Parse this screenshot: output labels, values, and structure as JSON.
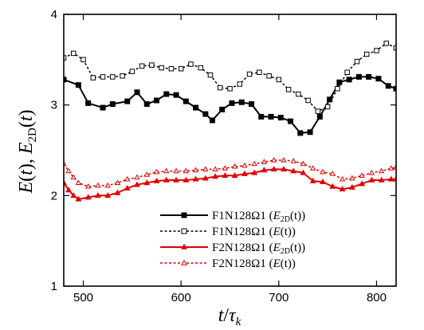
{
  "chart_data": {
    "type": "line",
    "title": "",
    "xlabel": "t/τ_k",
    "ylabel": "E(t), E_2D(t)",
    "xlim": [
      480,
      820
    ],
    "ylim": [
      1,
      4
    ],
    "xticks": [
      "500",
      "600",
      "700",
      "800"
    ],
    "yticks": [
      "1",
      "2",
      "3",
      "4"
    ],
    "grid": false,
    "legend_position": "bottom-right",
    "series": [
      {
        "name": "F1N128Ω1 (E_2D(t))",
        "legend_main": "F1N128Ω1 (",
        "legend_var": "E",
        "legend_sub": "2D",
        "legend_tail": "(t))",
        "color": "#000000",
        "dash": "solid",
        "marker": "filled-square",
        "x": [
          480,
          495,
          505,
          520,
          530,
          545,
          555,
          565,
          575,
          585,
          595,
          605,
          615,
          625,
          632,
          642,
          652,
          662,
          672,
          682,
          692,
          702,
          712,
          722,
          732,
          742,
          752,
          762,
          772,
          782,
          792,
          802,
          812,
          820
        ],
        "y": [
          3.28,
          3.22,
          3.02,
          2.97,
          3.01,
          3.04,
          3.14,
          3.01,
          3.05,
          3.12,
          3.11,
          3.04,
          2.97,
          2.9,
          2.83,
          2.95,
          3.02,
          3.03,
          3.01,
          2.87,
          2.87,
          2.86,
          2.82,
          2.69,
          2.7,
          2.87,
          3.06,
          3.25,
          3.28,
          3.31,
          3.31,
          3.29,
          3.21,
          3.18
        ]
      },
      {
        "name": "F1N128Ω1 (E(t))",
        "legend_main": "F1N128Ω1 (",
        "legend_var": "E",
        "legend_sub": "",
        "legend_tail": "(t))",
        "color": "#000000",
        "dash": "dashed",
        "marker": "open-square",
        "x": [
          480,
          490,
          500,
          510,
          520,
          530,
          540,
          550,
          560,
          570,
          580,
          590,
          600,
          610,
          620,
          630,
          640,
          650,
          660,
          670,
          680,
          690,
          700,
          710,
          720,
          730,
          740,
          750,
          760,
          770,
          780,
          790,
          800,
          810,
          820
        ],
        "y": [
          3.52,
          3.57,
          3.5,
          3.3,
          3.31,
          3.31,
          3.32,
          3.37,
          3.43,
          3.44,
          3.41,
          3.4,
          3.4,
          3.45,
          3.41,
          3.33,
          3.19,
          3.18,
          3.23,
          3.34,
          3.36,
          3.32,
          3.28,
          3.17,
          3.12,
          3.05,
          2.93,
          2.98,
          3.18,
          3.36,
          3.48,
          3.56,
          3.6,
          3.68,
          3.63
        ]
      },
      {
        "name": "F2N128Ω1 (E_2D(t))",
        "legend_main": "F2N128Ω1 (",
        "legend_var": "E",
        "legend_sub": "2D",
        "legend_tail": "(t))",
        "color": "#e00000",
        "dash": "solid",
        "marker": "filled-triangle",
        "x": [
          480,
          485,
          490,
          495,
          505,
          515,
          525,
          535,
          545,
          555,
          565,
          575,
          585,
          595,
          605,
          615,
          625,
          635,
          645,
          655,
          665,
          675,
          685,
          695,
          705,
          715,
          725,
          735,
          745,
          755,
          765,
          775,
          785,
          795,
          805,
          815,
          820
        ],
        "y": [
          2.14,
          2.06,
          2.0,
          1.96,
          1.98,
          2.0,
          2.0,
          2.03,
          2.08,
          2.12,
          2.14,
          2.16,
          2.17,
          2.17,
          2.17,
          2.18,
          2.19,
          2.21,
          2.22,
          2.22,
          2.24,
          2.25,
          2.28,
          2.29,
          2.29,
          2.27,
          2.25,
          2.16,
          2.15,
          2.1,
          2.07,
          2.09,
          2.13,
          2.17,
          2.17,
          2.18,
          2.18
        ]
      },
      {
        "name": "F2N128Ω1 (E(t))",
        "legend_main": "F2N128Ω1 (",
        "legend_var": "E",
        "legend_sub": "",
        "legend_tail": "(t))",
        "color": "#e00000",
        "dash": "dashed",
        "marker": "open-triangle",
        "x": [
          480,
          485,
          490,
          495,
          505,
          515,
          525,
          535,
          545,
          555,
          565,
          575,
          585,
          595,
          605,
          615,
          625,
          635,
          645,
          655,
          665,
          675,
          685,
          695,
          705,
          715,
          725,
          735,
          745,
          755,
          765,
          775,
          785,
          795,
          805,
          815,
          820
        ],
        "y": [
          2.35,
          2.27,
          2.2,
          2.14,
          2.1,
          2.11,
          2.11,
          2.14,
          2.18,
          2.2,
          2.23,
          2.26,
          2.27,
          2.27,
          2.27,
          2.28,
          2.29,
          2.29,
          2.3,
          2.32,
          2.33,
          2.35,
          2.37,
          2.39,
          2.39,
          2.38,
          2.35,
          2.3,
          2.26,
          2.24,
          2.18,
          2.19,
          2.22,
          2.25,
          2.27,
          2.3,
          2.31
        ]
      }
    ]
  }
}
